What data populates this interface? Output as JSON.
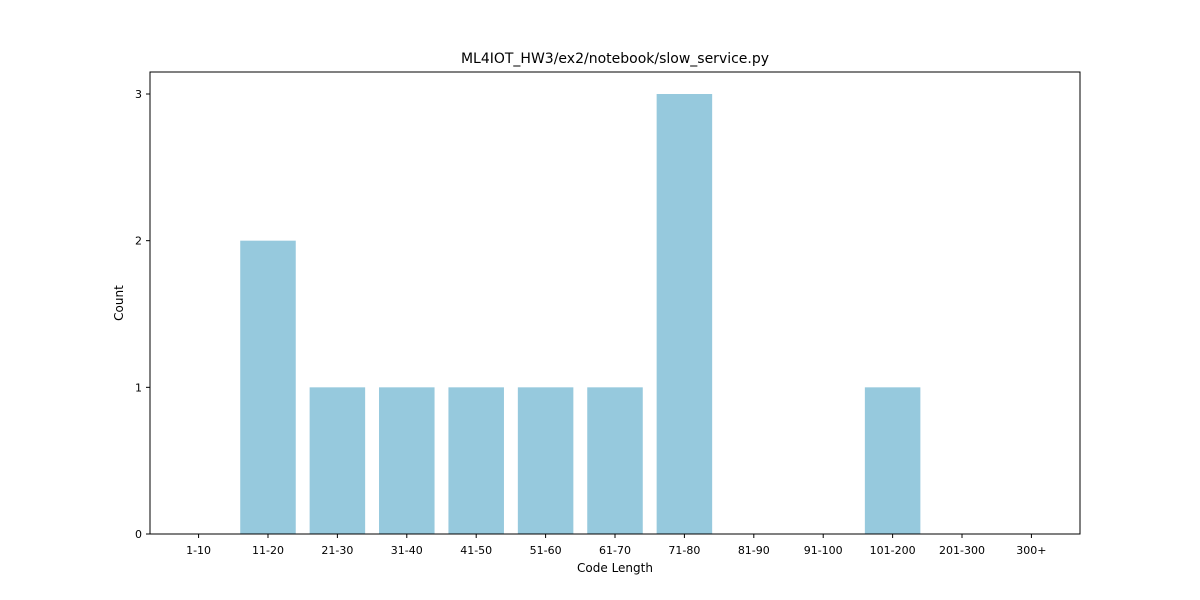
{
  "chart_data": {
    "type": "bar",
    "title": "ML4IOT_HW3/ex2/notebook/slow_service.py",
    "xlabel": "Code Length",
    "ylabel": "Count",
    "categories": [
      "1-10",
      "11-20",
      "21-30",
      "31-40",
      "41-50",
      "51-60",
      "61-70",
      "71-80",
      "81-90",
      "91-100",
      "101-200",
      "201-300",
      "300+"
    ],
    "values": [
      0,
      2,
      1,
      1,
      1,
      1,
      1,
      3,
      0,
      0,
      1,
      0,
      0
    ],
    "ylim": [
      0,
      3.15
    ],
    "yticks": [
      "0",
      "1",
      "2",
      "3"
    ],
    "grid": false,
    "bar_color": "#96c9dd"
  }
}
